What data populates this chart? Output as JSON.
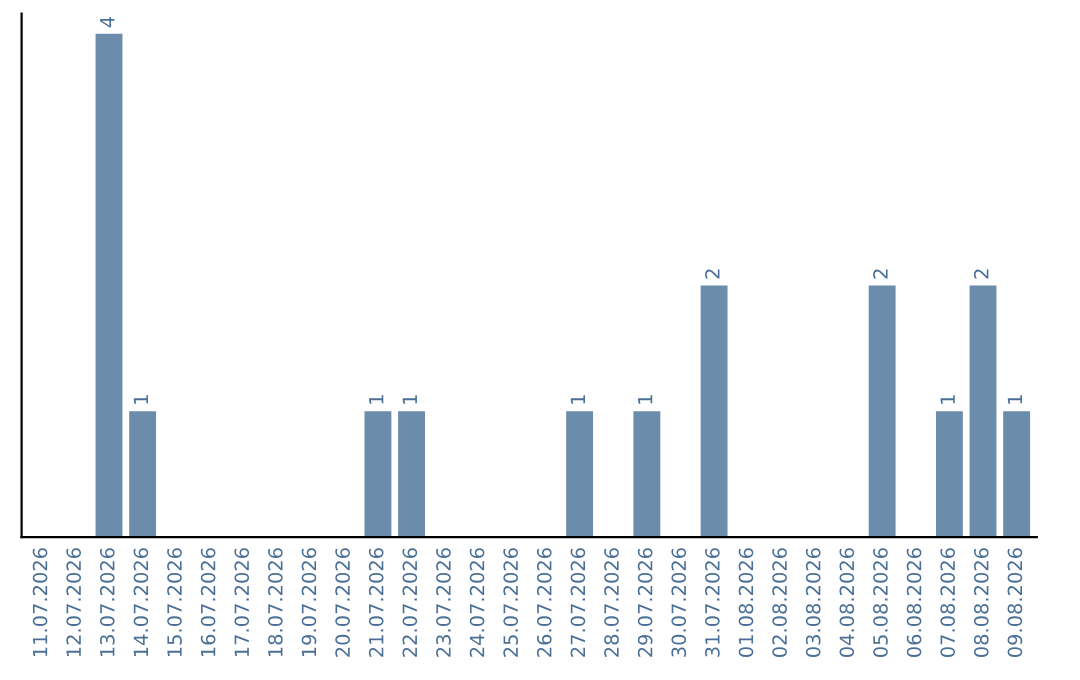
{
  "chart_data": {
    "type": "bar",
    "categories": [
      "11.07.2026",
      "12.07.2026",
      "13.07.2026",
      "14.07.2026",
      "15.07.2026",
      "16.07.2026",
      "17.07.2026",
      "18.07.2026",
      "19.07.2026",
      "20.07.2026",
      "21.07.2026",
      "22.07.2026",
      "23.07.2026",
      "24.07.2026",
      "25.07.2026",
      "26.07.2026",
      "27.07.2026",
      "28.07.2026",
      "29.07.2026",
      "30.07.2026",
      "31.07.2026",
      "01.08.2026",
      "02.08.2026",
      "03.08.2026",
      "04.08.2026",
      "05.08.2026",
      "06.08.2026",
      "07.08.2026",
      "08.08.2026",
      "09.08.2026"
    ],
    "values": [
      0,
      0,
      4,
      1,
      0,
      0,
      0,
      0,
      0,
      0,
      1,
      1,
      0,
      0,
      0,
      0,
      1,
      0,
      1,
      0,
      2,
      0,
      0,
      0,
      0,
      2,
      0,
      1,
      2,
      1
    ],
    "value_labels": [
      null,
      null,
      "4",
      "1",
      null,
      null,
      null,
      null,
      null,
      null,
      "1",
      "1",
      null,
      null,
      null,
      null,
      "1",
      null,
      "1",
      null,
      "2",
      null,
      null,
      null,
      null,
      "2",
      null,
      "1",
      "2",
      "1"
    ],
    "color": "#6b8cab",
    "tick_labels": "x",
    "grid": false,
    "legend": false
  }
}
